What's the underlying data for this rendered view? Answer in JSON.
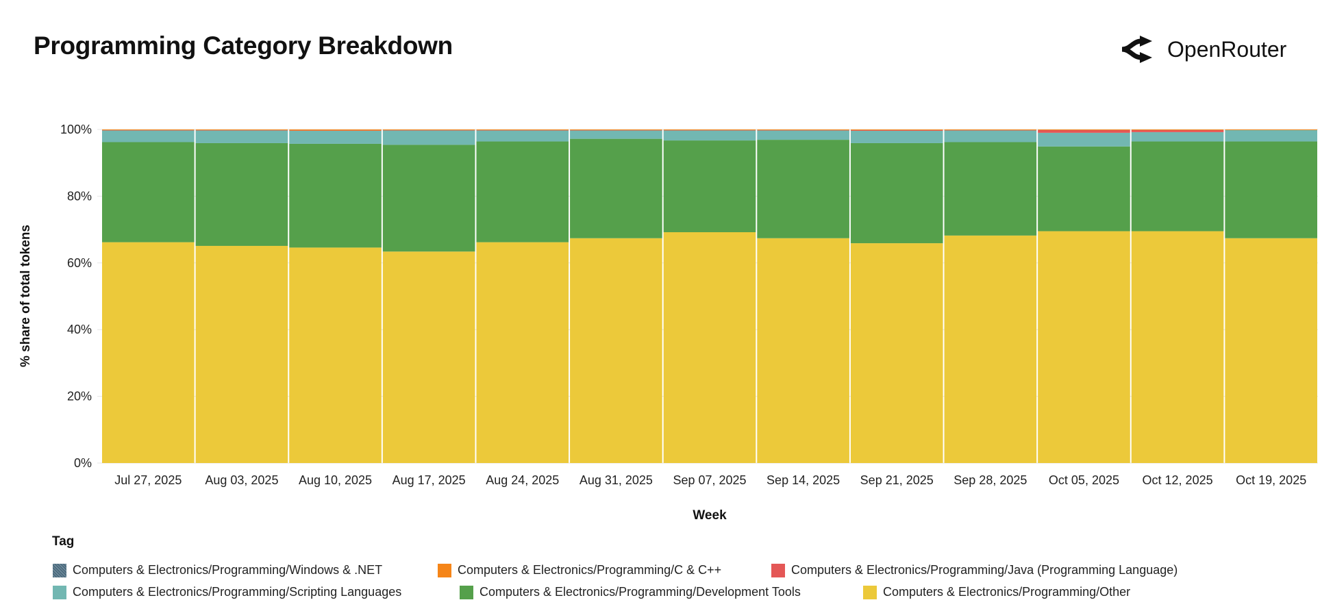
{
  "title": "Programming Category Breakdown",
  "brand": {
    "name": "OpenRouter",
    "icon": "openrouter-logo-icon"
  },
  "chart_data": {
    "type": "bar",
    "stacked": true,
    "normalized": true,
    "xlabel": "Week",
    "ylabel": "% share of total tokens",
    "ylim": [
      0,
      100
    ],
    "yticks": [
      "0%",
      "20%",
      "40%",
      "60%",
      "80%",
      "100%"
    ],
    "ytick_values": [
      0,
      20,
      40,
      60,
      80,
      100
    ],
    "grid": true,
    "legend_title": "Tag",
    "legend_position": "bottom",
    "categories": [
      "Jul 27, 2025",
      "Aug 03, 2025",
      "Aug 10, 2025",
      "Aug 17, 2025",
      "Aug 24, 2025",
      "Aug 31, 2025",
      "Sep 07, 2025",
      "Sep 14, 2025",
      "Sep 21, 2025",
      "Sep 28, 2025",
      "Oct 05, 2025",
      "Oct 12, 2025",
      "Oct 19, 2025"
    ],
    "series": [
      {
        "name": "Computers & Electronics/Programming/Other",
        "color": "#ECC93A",
        "values": [
          66.2,
          65.1,
          64.6,
          63.4,
          66.2,
          67.4,
          69.2,
          67.4,
          65.9,
          68.2,
          69.5,
          69.5,
          67.4
        ]
      },
      {
        "name": "Computers & Electronics/Programming/Development Tools",
        "color": "#55A04B",
        "values": [
          30.0,
          30.8,
          31.1,
          32.0,
          30.2,
          29.8,
          27.5,
          29.5,
          30.0,
          28.0,
          25.4,
          26.9,
          29.0
        ]
      },
      {
        "name": "Computers & Electronics/Programming/Scripting Languages",
        "color": "#72B7B2",
        "values": [
          3.5,
          3.8,
          3.9,
          4.3,
          3.3,
          2.5,
          3.0,
          2.8,
          3.7,
          3.5,
          4.1,
          2.8,
          3.4
        ]
      },
      {
        "name": "Computers & Electronics/Programming/Java (Programming Language)",
        "color": "#E45756",
        "values": [
          0.1,
          0.1,
          0.1,
          0.1,
          0.1,
          0.1,
          0.1,
          0.1,
          0.2,
          0.1,
          0.8,
          0.6,
          0.0
        ]
      },
      {
        "name": "Computers & Electronics/Programming/C & C++",
        "color": "#F58518",
        "values": [
          0.2,
          0.2,
          0.3,
          0.2,
          0.2,
          0.2,
          0.2,
          0.2,
          0.2,
          0.2,
          0.2,
          0.2,
          0.2
        ]
      },
      {
        "name": "Computers & Electronics/Programming/Windows & .NET",
        "color": "#4C6B7E",
        "values": [
          0,
          0,
          0,
          0,
          0,
          0,
          0,
          0,
          0,
          0,
          0,
          0,
          0
        ]
      }
    ],
    "legend_order": [
      5,
      4,
      3,
      2,
      1,
      0
    ]
  }
}
